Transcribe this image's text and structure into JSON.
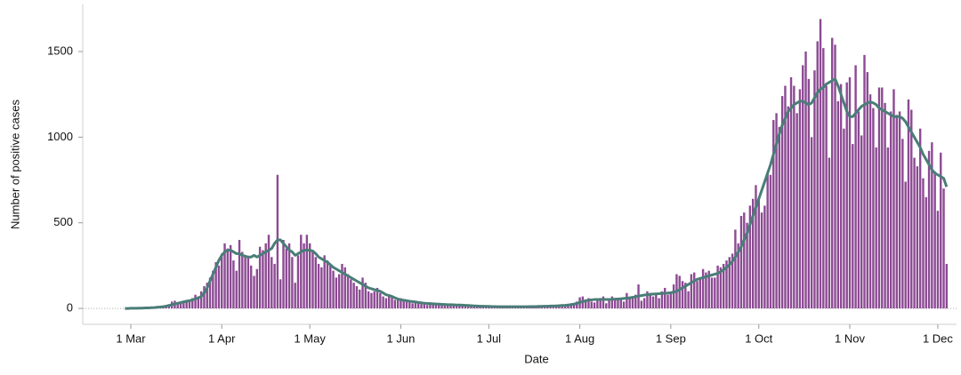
{
  "chart_data": {
    "type": "bar",
    "x_label": "Date",
    "y_label": "Number of positive cases",
    "categories": [
      null,
      null,
      "1 Mar",
      null,
      null,
      null,
      null,
      null,
      null,
      null,
      null,
      null,
      null,
      null,
      null,
      null,
      null,
      null,
      null,
      null,
      null,
      null,
      null,
      null,
      null,
      null,
      null,
      null,
      null,
      null,
      null,
      null,
      null,
      "1 Apr",
      null,
      null,
      null,
      null,
      null,
      null,
      null,
      null,
      null,
      null,
      null,
      null,
      null,
      null,
      null,
      null,
      null,
      null,
      null,
      null,
      null,
      null,
      null,
      null,
      null,
      null,
      null,
      null,
      null,
      "1 May",
      null,
      null,
      null,
      null,
      null,
      null,
      null,
      null,
      null,
      null,
      null,
      null,
      null,
      null,
      null,
      null,
      null,
      null,
      null,
      null,
      null,
      null,
      null,
      null,
      null,
      null,
      null,
      null,
      null,
      null,
      "1 Jun",
      null,
      null,
      null,
      null,
      null,
      null,
      null,
      null,
      null,
      null,
      null,
      null,
      null,
      null,
      null,
      null,
      null,
      null,
      null,
      null,
      null,
      null,
      null,
      null,
      null,
      null,
      null,
      null,
      null,
      "1 Jul",
      null,
      null,
      null,
      null,
      null,
      null,
      null,
      null,
      null,
      null,
      null,
      null,
      null,
      null,
      null,
      null,
      null,
      null,
      null,
      null,
      null,
      null,
      null,
      null,
      null,
      null,
      null,
      null,
      null,
      null,
      "1 Aug",
      null,
      null,
      null,
      null,
      null,
      null,
      null,
      null,
      null,
      null,
      null,
      null,
      null,
      null,
      null,
      null,
      null,
      null,
      null,
      null,
      null,
      null,
      null,
      null,
      null,
      null,
      null,
      null,
      null,
      null,
      "1 Sep",
      null,
      null,
      null,
      null,
      null,
      null,
      null,
      null,
      null,
      null,
      null,
      null,
      null,
      null,
      null,
      null,
      null,
      null,
      null,
      null,
      null,
      null,
      null,
      null,
      null,
      null,
      null,
      null,
      null,
      "1 Oct",
      null,
      null,
      null,
      null,
      null,
      null,
      null,
      null,
      null,
      null,
      null,
      null,
      null,
      null,
      null,
      null,
      null,
      null,
      null,
      null,
      null,
      null,
      null,
      null,
      null,
      null,
      null,
      null,
      null,
      null,
      "1 Nov",
      null,
      null,
      null,
      null,
      null,
      null,
      null,
      null,
      null,
      null,
      null,
      null,
      null,
      null,
      null,
      null,
      null,
      null,
      null,
      null,
      null,
      null,
      null,
      null,
      null,
      null,
      null,
      null,
      null,
      "1 Dec",
      null,
      null,
      null
    ],
    "series": [
      {
        "type": "bar",
        "color": "#8c4a93",
        "values": [
          0,
          0,
          1,
          1,
          2,
          2,
          3,
          4,
          5,
          5,
          8,
          10,
          12,
          15,
          20,
          25,
          40,
          45,
          35,
          40,
          45,
          50,
          40,
          60,
          80,
          70,
          100,
          130,
          150,
          180,
          220,
          270,
          250,
          320,
          380,
          350,
          370,
          280,
          220,
          400,
          330,
          310,
          300,
          250,
          190,
          230,
          360,
          340,
          380,
          430,
          300,
          260,
          780,
          170,
          400,
          350,
          380,
          300,
          150,
          310,
          430,
          380,
          430,
          380,
          330,
          300,
          260,
          240,
          310,
          280,
          250,
          220,
          180,
          200,
          260,
          240,
          200,
          170,
          150,
          130,
          110,
          180,
          150,
          100,
          90,
          100,
          120,
          90,
          70,
          60,
          80,
          70,
          50,
          55,
          60,
          45,
          40,
          35,
          30,
          40,
          30,
          25,
          30,
          20,
          25,
          30,
          20,
          20,
          18,
          25,
          20,
          22,
          18,
          15,
          15,
          20,
          18,
          15,
          12,
          15,
          18,
          12,
          10,
          12,
          10,
          12,
          8,
          10,
          10,
          12,
          10,
          8,
          10,
          12,
          10,
          9,
          8,
          10,
          12,
          11,
          10,
          14,
          12,
          15,
          10,
          12,
          18,
          15,
          20,
          15,
          22,
          25,
          30,
          25,
          40,
          65,
          70,
          45,
          60,
          40,
          35,
          55,
          60,
          70,
          30,
          45,
          70,
          55,
          60,
          50,
          40,
          90,
          65,
          70,
          80,
          140,
          45,
          60,
          100,
          90,
          70,
          85,
          60,
          100,
          120,
          80,
          90,
          140,
          200,
          190,
          160,
          150,
          100,
          200,
          210,
          160,
          180,
          230,
          210,
          220,
          180,
          180,
          250,
          240,
          260,
          280,
          300,
          320,
          460,
          380,
          540,
          560,
          500,
          600,
          640,
          720,
          640,
          560,
          600,
          800,
          780,
          1100,
          1140,
          1060,
          1240,
          1300,
          1180,
          1350,
          1300,
          1140,
          1280,
          1420,
          1500,
          1340,
          1000,
          1390,
          1560,
          1690,
          1520,
          1300,
          880,
          1580,
          1540,
          1210,
          1310,
          1050,
          1320,
          1350,
          960,
          1420,
          1150,
          1010,
          1480,
          1380,
          1250,
          1170,
          940,
          1290,
          1290,
          1200,
          940,
          1150,
          1280,
          1130,
          1150,
          990,
          740,
          1220,
          1160,
          880,
          830,
          1050,
          760,
          650,
          920,
          970,
          800,
          570,
          910,
          700,
          260
        ]
      },
      {
        "type": "line",
        "color": "#4a7d78",
        "values": [
          0,
          0,
          1,
          1,
          1,
          2,
          2,
          3,
          3,
          4,
          5,
          7,
          8,
          10,
          13,
          17,
          21,
          26,
          30,
          34,
          38,
          42,
          45,
          50,
          56,
          61,
          70,
          90,
          120,
          160,
          200,
          240,
          280,
          310,
          330,
          340,
          340,
          330,
          320,
          320,
          310,
          305,
          300,
          300,
          310,
          300,
          310,
          320,
          330,
          340,
          350,
          380,
          400,
          400,
          380,
          360,
          340,
          330,
          310,
          320,
          330,
          340,
          340,
          340,
          335,
          320,
          300,
          290,
          280,
          270,
          255,
          240,
          230,
          220,
          210,
          200,
          190,
          180,
          170,
          160,
          150,
          140,
          130,
          120,
          115,
          110,
          105,
          100,
          90,
          80,
          75,
          70,
          62,
          55,
          50,
          48,
          45,
          42,
          40,
          38,
          35,
          33,
          30,
          29,
          28,
          27,
          26,
          25,
          24,
          23,
          22,
          22,
          21,
          20,
          20,
          19,
          18,
          17,
          16,
          15,
          14,
          13,
          13,
          12,
          12,
          11,
          11,
          10,
          10,
          10,
          10,
          10,
          10,
          10,
          10,
          10,
          10,
          10,
          11,
          11,
          11,
          12,
          12,
          13,
          13,
          14,
          14,
          15,
          16,
          17,
          18,
          20,
          22,
          25,
          30,
          35,
          40,
          45,
          48,
          50,
          52,
          52,
          53,
          53,
          52,
          52,
          53,
          54,
          55,
          56,
          58,
          60,
          62,
          65,
          68,
          72,
          75,
          78,
          80,
          82,
          84,
          85,
          86,
          88,
          88,
          90,
          92,
          95,
          100,
          110,
          120,
          130,
          140,
          150,
          160,
          170,
          175,
          180,
          185,
          190,
          195,
          200,
          205,
          215,
          225,
          240,
          255,
          275,
          300,
          330,
          360,
          400,
          440,
          490,
          540,
          590,
          640,
          690,
          740,
          790,
          840,
          900,
          960,
          1020,
          1070,
          1110,
          1150,
          1170,
          1190,
          1200,
          1210,
          1210,
          1200,
          1190,
          1200,
          1230,
          1260,
          1280,
          1290,
          1310,
          1320,
          1330,
          1340,
          1300,
          1250,
          1200,
          1150,
          1120,
          1120,
          1140,
          1160,
          1180,
          1190,
          1200,
          1205,
          1200,
          1190,
          1170,
          1160,
          1150,
          1140,
          1130,
          1120,
          1120,
          1120,
          1110,
          1090,
          1060,
          1030,
          1000,
          970,
          940,
          900,
          870,
          840,
          810,
          790,
          780,
          770,
          760,
          710
        ]
      }
    ],
    "ylim": [
      -93,
      1775
    ],
    "yticks": [
      0,
      500,
      1000,
      1500
    ]
  }
}
